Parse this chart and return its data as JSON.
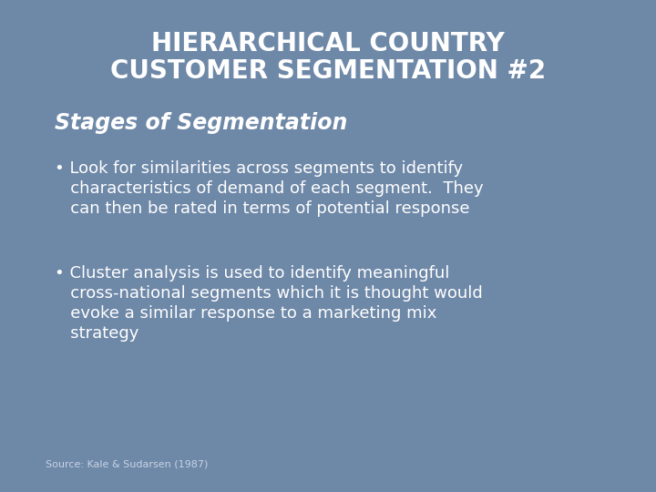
{
  "title_line1": "HIERARCHICAL COUNTRY",
  "title_line2": "CUSTOMER SEGMENTATION #2",
  "subtitle": "Stages of Segmentation",
  "bullet1_line1": "• Look for similarities across segments to identify",
  "bullet1_line2": "   characteristics of demand of each segment.  They",
  "bullet1_line3": "   can then be rated in terms of potential response",
  "bullet2_line1": "• Cluster analysis is used to identify meaningful",
  "bullet2_line2": "   cross-national segments which it is thought would",
  "bullet2_line3": "   evoke a similar response to a marketing mix",
  "bullet2_line4": "   strategy",
  "source": "Source: Kale & Sudarsen (1987)",
  "bg_color": "#6e88a8",
  "title_color": "#ffffff",
  "subtitle_color": "#ffffff",
  "bullet_color": "#ffffff",
  "source_color": "#c8d4e4",
  "title_fontsize": 20,
  "subtitle_fontsize": 17,
  "bullet_fontsize": 13,
  "source_fontsize": 8
}
